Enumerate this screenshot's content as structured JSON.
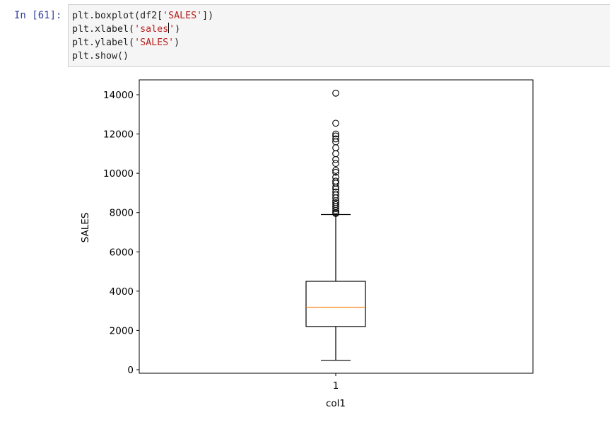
{
  "cell": {
    "prompt": "In [61]:",
    "lines": [
      {
        "parts": [
          {
            "t": "plt.boxplot(df2[",
            "s": false
          },
          {
            "t": "'SALES'",
            "s": true
          },
          {
            "t": "])",
            "s": false
          }
        ]
      },
      {
        "parts": [
          {
            "t": "plt.xlabel(",
            "s": false
          },
          {
            "t": "'sales",
            "s": true
          },
          {
            "cursor": true
          },
          {
            "t": "'",
            "s": true
          },
          {
            "t": ")",
            "s": false
          }
        ]
      },
      {
        "parts": [
          {
            "t": "plt.ylabel(",
            "s": false
          },
          {
            "t": "'SALES'",
            "s": true
          },
          {
            "t": ")",
            "s": false
          }
        ]
      },
      {
        "parts": [
          {
            "t": "plt.show()",
            "s": false
          }
        ]
      }
    ]
  },
  "chart_data": {
    "type": "boxplot",
    "xlabel": "col1",
    "ylabel": "SALES",
    "categories": [
      "1"
    ],
    "ylim": [
      -400,
      15000
    ],
    "yticks": [
      0,
      2000,
      4000,
      6000,
      8000,
      10000,
      12000,
      14000
    ],
    "ytick_labels": [
      "0",
      "2000",
      "4000",
      "6000",
      "8000",
      "10000",
      "12000",
      "14000"
    ],
    "box": {
      "whisker_low": 480,
      "q1": 2200,
      "median": 3180,
      "q3": 4500,
      "whisker_high": 7900
    },
    "outliers": [
      14080,
      12550,
      12000,
      11900,
      11750,
      11600,
      11300,
      11000,
      10700,
      10500,
      10150,
      10050,
      9800,
      9600,
      9500,
      9300,
      9200,
      9050,
      8900,
      8750,
      8600,
      8500,
      8400,
      8300,
      8200,
      8100,
      8000,
      7950
    ],
    "grid": false,
    "colors": {
      "box": "#000000",
      "median": "#ff7f0e"
    }
  }
}
